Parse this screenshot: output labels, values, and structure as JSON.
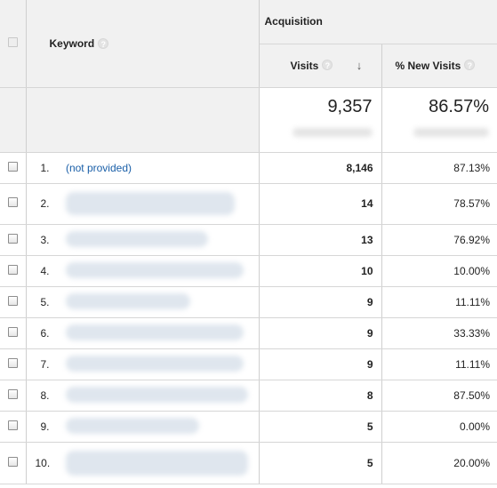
{
  "header": {
    "keyword_label": "Keyword",
    "acquisition_label": "Acquisition",
    "visits_label": "Visits",
    "new_visits_label": "% New Visits",
    "help_glyph": "?",
    "sort_arrow": "↓"
  },
  "summary": {
    "visits": "9,357",
    "new_visits": "86.57%"
  },
  "rows": [
    {
      "index": "1.",
      "keyword": "(not provided)",
      "visits": "8,146",
      "new_visits": "87.13%"
    },
    {
      "index": "2.",
      "keyword": "",
      "visits": "14",
      "new_visits": "78.57%"
    },
    {
      "index": "3.",
      "keyword": "",
      "visits": "13",
      "new_visits": "76.92%"
    },
    {
      "index": "4.",
      "keyword": "",
      "visits": "10",
      "new_visits": "10.00%"
    },
    {
      "index": "5.",
      "keyword": "",
      "visits": "9",
      "new_visits": "11.11%"
    },
    {
      "index": "6.",
      "keyword": "",
      "visits": "9",
      "new_visits": "33.33%"
    },
    {
      "index": "7.",
      "keyword": "",
      "visits": "9",
      "new_visits": "11.11%"
    },
    {
      "index": "8.",
      "keyword": "",
      "visits": "8",
      "new_visits": "87.50%"
    },
    {
      "index": "9.",
      "keyword": "",
      "visits": "5",
      "new_visits": "0.00%"
    },
    {
      "index": "10.",
      "keyword": "",
      "visits": "5",
      "new_visits": "20.00%"
    }
  ],
  "colors": {
    "header_bg": "#f1f1f1",
    "link": "#1a5fa8",
    "border": "#d6d6d6"
  }
}
